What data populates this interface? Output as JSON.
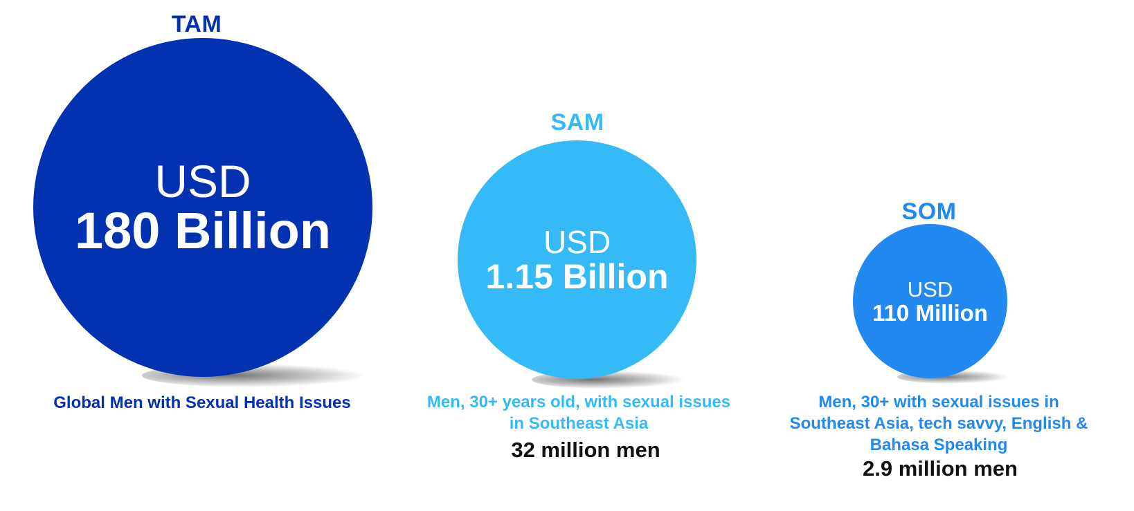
{
  "markets": {
    "tam": {
      "label": "TAM",
      "currency": "USD",
      "amount": "180 Billion",
      "description": "Global Men with Sexual Health Issues",
      "color": "#0332b0"
    },
    "sam": {
      "label": "SAM",
      "currency": "USD",
      "amount": "1.15 Billion",
      "description_lines": [
        "Men, 30+ years old, with sexual issues",
        "in Southeast Asia"
      ],
      "count": "32 million men",
      "color": "#36baf7"
    },
    "som": {
      "label": "SOM",
      "currency": "USD",
      "amount": "110 Million",
      "description_lines": [
        "Men, 30+ with sexual issues in",
        "Southeast Asia, tech savvy, English &",
        "Bahasa Speaking"
      ],
      "count": "2.9 million men",
      "color": "#2189f0"
    }
  }
}
